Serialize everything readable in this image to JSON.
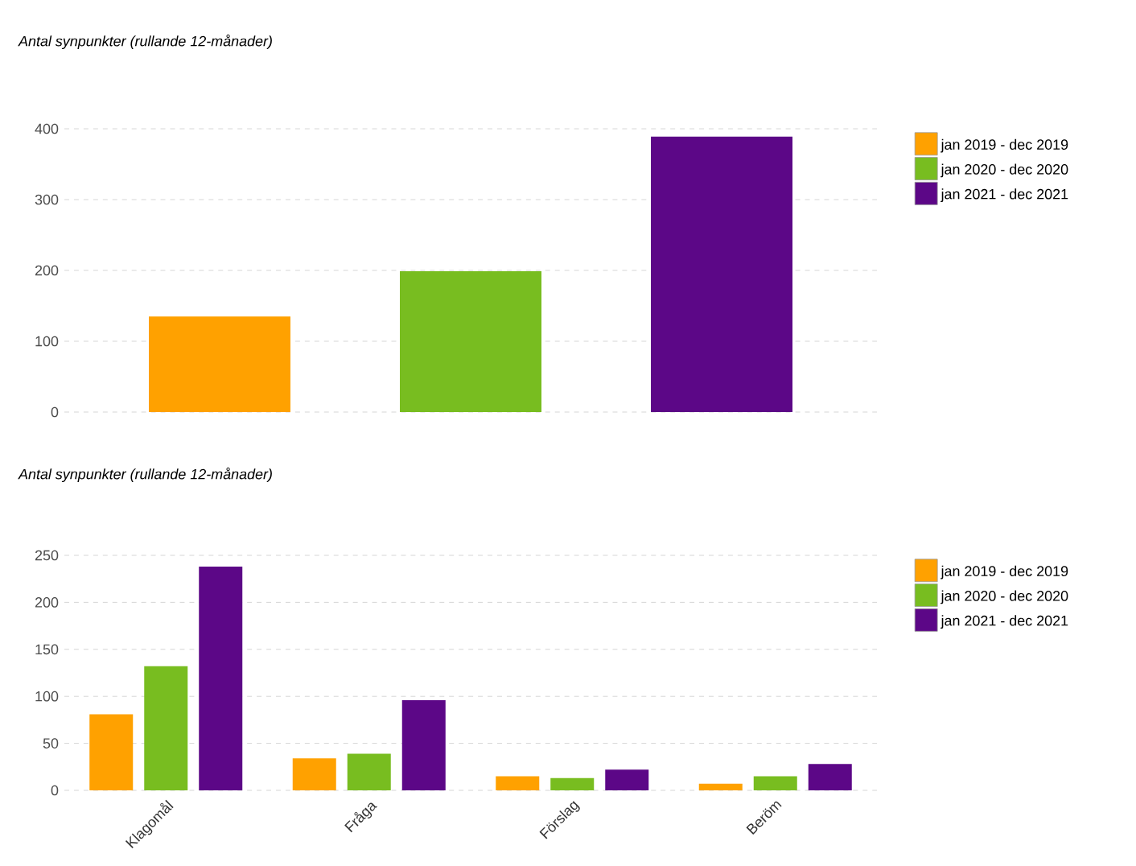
{
  "chart_data": [
    {
      "type": "bar",
      "title": "Antal synpunkter (rullande 12-månader)",
      "categories": [
        null
      ],
      "ylim": [
        0,
        400
      ],
      "yticks": [
        0,
        100,
        200,
        300,
        400
      ],
      "grid": "y",
      "legend": "top right",
      "series": [
        {
          "name": "jan 2019 - dec 2019",
          "color": "#ffa100",
          "values": [
            135
          ]
        },
        {
          "name": "jan 2020 - dec 2020",
          "color": "#78bd20",
          "values": [
            199
          ]
        },
        {
          "name": "jan 2021 - dec 2021",
          "color": "#5c0787",
          "values": [
            389
          ]
        }
      ]
    },
    {
      "type": "bar",
      "title": "Antal synpunkter (rullande 12-månader)",
      "categories": [
        "Klagomål",
        "Fråga",
        "Förslag",
        "Beröm"
      ],
      "ylim": [
        0,
        250
      ],
      "yticks": [
        0,
        50,
        100,
        150,
        200,
        250
      ],
      "grid": "y",
      "legend": "top right",
      "series": [
        {
          "name": "jan 2019 - dec 2019",
          "color": "#ffa100",
          "values": [
            81,
            34,
            15,
            7
          ]
        },
        {
          "name": "jan 2020 - dec 2020",
          "color": "#78bd20",
          "values": [
            132,
            39,
            13,
            15
          ]
        },
        {
          "name": "jan 2021 - dec 2021",
          "color": "#5c0787",
          "values": [
            238,
            96,
            22,
            28
          ]
        }
      ]
    }
  ]
}
